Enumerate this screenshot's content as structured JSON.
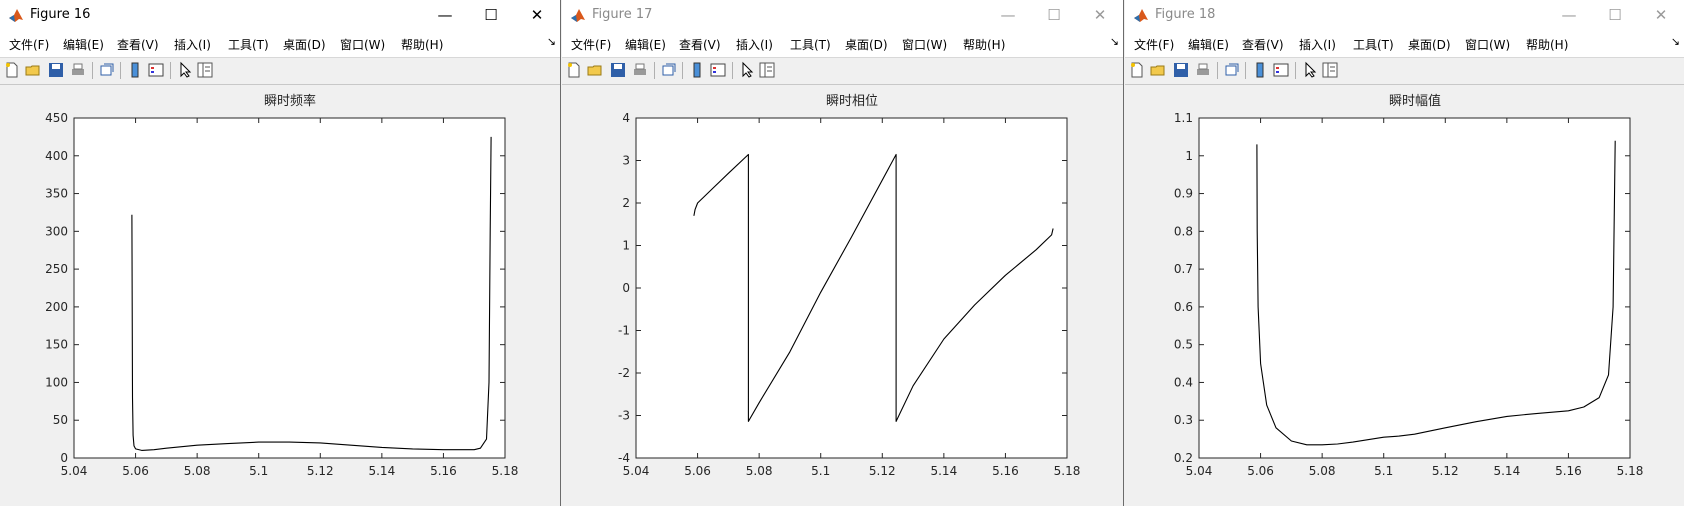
{
  "menu": [
    "文件(F)",
    "编辑(E)",
    "查看(V)",
    "插入(I)",
    "工具(T)",
    "桌面(D)",
    "窗口(W)",
    "帮助(H)"
  ],
  "window_controls": {
    "minimize": "—",
    "maximize": "☐",
    "close": "✕"
  },
  "toolbar_icons": [
    "new-figure-icon",
    "open-file-icon",
    "save-icon",
    "print-icon",
    "link-plot-icon",
    "insert-colorbar-icon",
    "insert-legend-icon",
    "edit-plot-arrow-icon",
    "property-inspector-icon"
  ],
  "colors": {
    "line": "#000000",
    "axes_bg": "#ffffff",
    "figure_bg": "#f0f0f0",
    "matlab_icon": "#d9581b"
  },
  "windows": [
    {
      "title": "Figure 16",
      "active": true,
      "chart_data": {
        "type": "line",
        "title": "瞬时频率",
        "xlabel": "",
        "ylabel": "",
        "xlim": [
          5.04,
          5.18
        ],
        "ylim": [
          0,
          450
        ],
        "xticks": [
          "5.04",
          "5.06",
          "5.08",
          "5.1",
          "5.12",
          "5.14",
          "5.16",
          "5.18"
        ],
        "yticks": [
          "0",
          "50",
          "100",
          "150",
          "200",
          "250",
          "300",
          "350",
          "400",
          "450"
        ],
        "grid": false,
        "series": [
          {
            "x": [
              5.0588,
              5.0589,
              5.059,
              5.0592,
              5.0595,
              5.06,
              5.062,
              5.066,
              5.07,
              5.08,
              5.09,
              5.1,
              5.11,
              5.12,
              5.13,
              5.14,
              5.15,
              5.16,
              5.165,
              5.17,
              5.172,
              5.174,
              5.1748,
              5.1752,
              5.1755
            ],
            "y": [
              322,
              200,
              80,
              30,
              16,
              12,
              10,
              11,
              13,
              17,
              19,
              21,
              21,
              20,
              17,
              14,
              12,
              11,
              11,
              11,
              13,
              25,
              100,
              300,
              425
            ]
          }
        ]
      }
    },
    {
      "title": "Figure 17",
      "active": false,
      "chart_data": {
        "type": "line",
        "title": "瞬时相位",
        "xlabel": "",
        "ylabel": "",
        "xlim": [
          5.04,
          5.18
        ],
        "ylim": [
          -4,
          4
        ],
        "xticks": [
          "5.04",
          "5.06",
          "5.08",
          "5.1",
          "5.12",
          "5.14",
          "5.16",
          "5.18"
        ],
        "yticks": [
          "-4",
          "-3",
          "-2",
          "-1",
          "0",
          "1",
          "2",
          "3",
          "4"
        ],
        "grid": false,
        "series": [
          {
            "x": [
              5.0588,
              5.0592,
              5.06,
              5.065,
              5.07,
              5.0765,
              5.0765,
              5.08,
              5.09,
              5.1,
              5.11,
              5.1245,
              5.1245,
              5.13,
              5.14,
              5.15,
              5.16,
              5.17,
              5.175,
              5.1755
            ],
            "y": [
              1.7,
              1.85,
              2.0,
              2.35,
              2.7,
              3.14,
              -3.14,
              -2.7,
              -1.5,
              -0.1,
              1.2,
              3.14,
              -3.14,
              -2.3,
              -1.2,
              -0.4,
              0.3,
              0.9,
              1.25,
              1.4
            ]
          }
        ]
      }
    },
    {
      "title": "Figure 18",
      "active": false,
      "chart_data": {
        "type": "line",
        "title": "瞬时幅值",
        "xlabel": "",
        "ylabel": "",
        "xlim": [
          5.04,
          5.18
        ],
        "ylim": [
          0.2,
          1.1
        ],
        "xticks": [
          "5.04",
          "5.06",
          "5.08",
          "5.1",
          "5.12",
          "5.14",
          "5.16",
          "5.18"
        ],
        "yticks": [
          "0.2",
          "0.3",
          "0.4",
          "0.5",
          "0.6",
          "0.7",
          "0.8",
          "0.9",
          "1",
          "1.1"
        ],
        "grid": false,
        "series": [
          {
            "x": [
              5.0588,
              5.0589,
              5.0592,
              5.06,
              5.062,
              5.065,
              5.07,
              5.075,
              5.08,
              5.085,
              5.09,
              5.1,
              5.105,
              5.11,
              5.12,
              5.13,
              5.14,
              5.15,
              5.16,
              5.165,
              5.17,
              5.173,
              5.1745,
              5.1752
            ],
            "y": [
              1.03,
              0.8,
              0.6,
              0.45,
              0.34,
              0.28,
              0.245,
              0.235,
              0.235,
              0.237,
              0.242,
              0.255,
              0.258,
              0.263,
              0.28,
              0.296,
              0.31,
              0.318,
              0.325,
              0.335,
              0.36,
              0.42,
              0.6,
              1.04
            ]
          }
        ]
      }
    }
  ]
}
